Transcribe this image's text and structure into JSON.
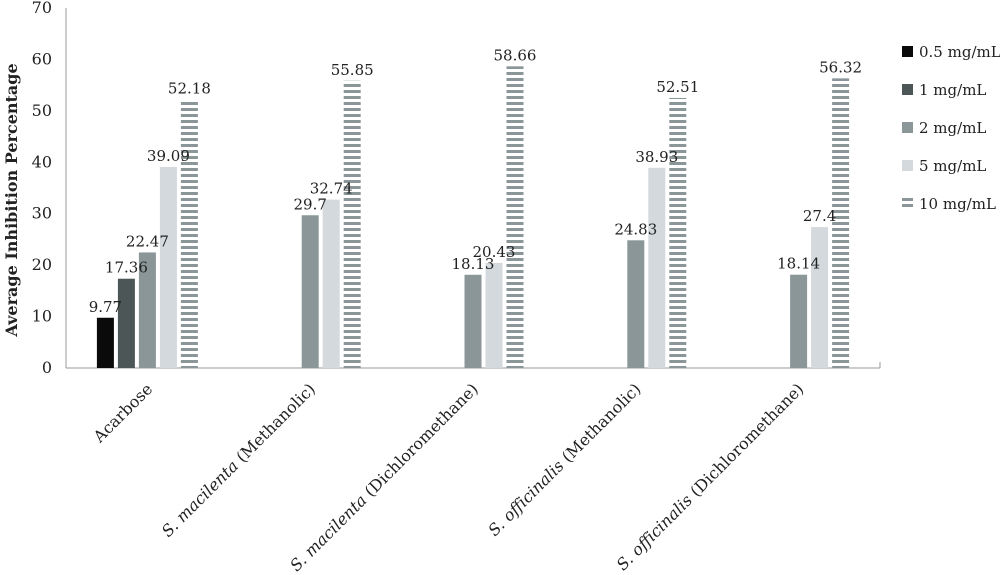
{
  "chart_data": {
    "type": "bar",
    "title": "",
    "xlabel": "",
    "ylabel": "Average Inhibition Percentage",
    "ylim": [
      0,
      70
    ],
    "yticks": [
      0,
      10,
      20,
      30,
      40,
      50,
      60,
      70
    ],
    "grid": false,
    "legend_position": "right",
    "categories": [
      {
        "prefix": "",
        "italic": "",
        "suffix": "Acarbose"
      },
      {
        "prefix": "",
        "italic": "S. macilenta",
        "suffix": " (Methanolic)"
      },
      {
        "prefix": "",
        "italic": "S. macilenta",
        "suffix": " (Dichloromethane)"
      },
      {
        "prefix": "",
        "italic": "S. officinalis",
        "suffix": " (Methanolic)"
      },
      {
        "prefix": "",
        "italic": "S. officinalis",
        "suffix": " (Dichloromethane)"
      }
    ],
    "series": [
      {
        "name": "0.5 mg/mL",
        "color": "#0a0a0a",
        "pattern": "solid",
        "values": [
          9.77,
          null,
          null,
          null,
          null
        ],
        "labels": [
          "9.77",
          "",
          "",
          "",
          ""
        ]
      },
      {
        "name": "1 mg/mL",
        "color": "#4d5656",
        "pattern": "solid",
        "values": [
          17.36,
          null,
          null,
          null,
          null
        ],
        "labels": [
          "17.36",
          "",
          "",
          "",
          ""
        ]
      },
      {
        "name": "2 mg/mL",
        "color": "#8b9698",
        "pattern": "solid",
        "values": [
          22.47,
          29.7,
          18.13,
          24.83,
          18.14
        ],
        "labels": [
          "22.47",
          "29.7",
          "18.13",
          "24.83",
          "18.14"
        ]
      },
      {
        "name": "5 mg/mL",
        "color": "#d3d9dd",
        "pattern": "solid",
        "values": [
          39.09,
          32.74,
          20.43,
          38.93,
          27.4
        ],
        "labels": [
          "39.09",
          "32.74",
          "20.43",
          "38.93",
          "27.4"
        ]
      },
      {
        "name": "10 mg/mL",
        "color": "#8b9698",
        "pattern": "stripes",
        "values": [
          52.18,
          55.85,
          58.66,
          52.51,
          56.32
        ],
        "labels": [
          "52.18",
          "55.85",
          "58.66",
          "52.51",
          "56.32"
        ]
      }
    ]
  }
}
